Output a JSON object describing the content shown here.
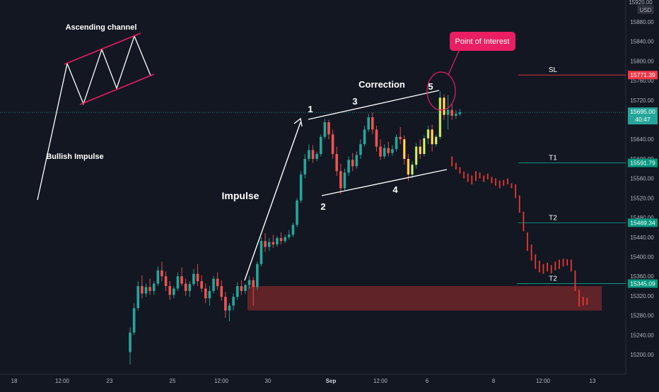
{
  "chart_data": {
    "type": "candlestick",
    "instrument_currency": "USD",
    "price_axis_top_label": "15920.00",
    "y_ticks": [
      15880,
      15840,
      15800,
      15760,
      15720,
      15680,
      15640,
      15600,
      15560,
      15520,
      15480,
      15440,
      15400,
      15360,
      15320,
      15280,
      15240,
      15200
    ],
    "ylim": [
      15170,
      15930
    ],
    "x_tick_labels": [
      "18",
      "12:00",
      "23",
      "25",
      "12:00",
      "30",
      "Sep",
      "12:00",
      "6",
      "8",
      "12:00",
      "13"
    ],
    "current_price": {
      "value": "15695.00",
      "countdown": "40:47",
      "value_num": 15695
    },
    "levels": [
      {
        "id": "sl",
        "name": "SL",
        "value": "15771.39",
        "value_num": 15771.39,
        "color": "#f23645"
      },
      {
        "id": "t1",
        "name": "T1",
        "value": "15591.79",
        "value_num": 15591.79,
        "color": "#089981"
      },
      {
        "id": "t2a",
        "name": "T2",
        "value": "15469.34",
        "value_num": 15469.34,
        "color": "#089981"
      },
      {
        "id": "t2b",
        "name": "T2",
        "value": "15345.09",
        "value_num": 15345.09,
        "color": "#089981"
      }
    ],
    "zone": {
      "low": 15290,
      "high": 15340,
      "color": "#8b2e31"
    },
    "annotations": {
      "ascending_channel": "Ascending channel",
      "bullish_impulse": "Bullish Impulse",
      "impulse": "Impulse",
      "correction": "Correction",
      "point_of_interest": "Point of Interest",
      "wave_labels": [
        "1",
        "2",
        "3",
        "4",
        "5"
      ]
    },
    "historical_candles": [
      {
        "t": 0,
        "o": 15205,
        "h": 15255,
        "c": 15245,
        "l": 15180
      },
      {
        "t": 1,
        "o": 15245,
        "h": 15305,
        "c": 15295,
        "l": 15240
      },
      {
        "t": 2,
        "o": 15295,
        "h": 15350,
        "c": 15340,
        "l": 15290
      },
      {
        "t": 3,
        "o": 15340,
        "h": 15362,
        "c": 15325,
        "l": 15315
      },
      {
        "t": 4,
        "o": 15325,
        "h": 15345,
        "c": 15338,
        "l": 15318
      },
      {
        "t": 5,
        "o": 15338,
        "h": 15355,
        "c": 15330,
        "l": 15322
      },
      {
        "t": 6,
        "o": 15330,
        "h": 15350,
        "c": 15345,
        "l": 15322
      },
      {
        "t": 7,
        "o": 15345,
        "h": 15380,
        "c": 15372,
        "l": 15340
      },
      {
        "t": 8,
        "o": 15372,
        "h": 15390,
        "c": 15360,
        "l": 15350
      },
      {
        "t": 9,
        "o": 15360,
        "h": 15370,
        "c": 15340,
        "l": 15330
      },
      {
        "t": 10,
        "o": 15340,
        "h": 15350,
        "c": 15322,
        "l": 15312
      },
      {
        "t": 11,
        "o": 15322,
        "h": 15340,
        "c": 15335,
        "l": 15315
      },
      {
        "t": 12,
        "o": 15335,
        "h": 15368,
        "c": 15360,
        "l": 15330
      },
      {
        "t": 13,
        "o": 15360,
        "h": 15378,
        "c": 15345,
        "l": 15340
      },
      {
        "t": 14,
        "o": 15345,
        "h": 15355,
        "c": 15330,
        "l": 15320
      },
      {
        "t": 15,
        "o": 15330,
        "h": 15350,
        "c": 15344,
        "l": 15318
      },
      {
        "t": 16,
        "o": 15344,
        "h": 15375,
        "c": 15365,
        "l": 15340
      },
      {
        "t": 17,
        "o": 15365,
        "h": 15385,
        "c": 15350,
        "l": 15340
      },
      {
        "t": 18,
        "o": 15350,
        "h": 15362,
        "c": 15335,
        "l": 15328
      },
      {
        "t": 19,
        "o": 15335,
        "h": 15345,
        "c": 15315,
        "l": 15305
      },
      {
        "t": 20,
        "o": 15315,
        "h": 15340,
        "c": 15330,
        "l": 15300
      },
      {
        "t": 21,
        "o": 15330,
        "h": 15360,
        "c": 15355,
        "l": 15325
      },
      {
        "t": 22,
        "o": 15355,
        "h": 15368,
        "c": 15340,
        "l": 15332
      },
      {
        "t": 23,
        "o": 15340,
        "h": 15352,
        "c": 15318,
        "l": 15310
      },
      {
        "t": 24,
        "o": 15318,
        "h": 15328,
        "c": 15290,
        "l": 15275
      },
      {
        "t": 25,
        "o": 15290,
        "h": 15305,
        "c": 15300,
        "l": 15268
      },
      {
        "t": 26,
        "o": 15300,
        "h": 15325,
        "c": 15318,
        "l": 15290
      },
      {
        "t": 27,
        "o": 15318,
        "h": 15348,
        "c": 15340,
        "l": 15312
      },
      {
        "t": 28,
        "o": 15340,
        "h": 15352,
        "c": 15330,
        "l": 15322
      },
      {
        "t": 29,
        "o": 15330,
        "h": 15345,
        "c": 15342,
        "l": 15324
      },
      {
        "t": 30,
        "o": 15342,
        "h": 15360,
        "c": 15352,
        "l": 15335
      },
      {
        "t": 31,
        "o": 15352,
        "h": 15358,
        "c": 15338,
        "l": 15300
      },
      {
        "t": 32,
        "o": 15338,
        "h": 15390,
        "c": 15385,
        "l": 15332
      },
      {
        "t": 33,
        "o": 15385,
        "h": 15440,
        "c": 15432,
        "l": 15380
      },
      {
        "t": 34,
        "o": 15432,
        "h": 15448,
        "c": 15420,
        "l": 15410
      },
      {
        "t": 35,
        "o": 15420,
        "h": 15438,
        "c": 15430,
        "l": 15412
      },
      {
        "t": 36,
        "o": 15430,
        "h": 15445,
        "c": 15425,
        "l": 15418
      },
      {
        "t": 37,
        "o": 15425,
        "h": 15442,
        "c": 15438,
        "l": 15420
      },
      {
        "t": 38,
        "o": 15438,
        "h": 15450,
        "c": 15432,
        "l": 15425
      },
      {
        "t": 39,
        "o": 15432,
        "h": 15445,
        "c": 15440,
        "l": 15428
      },
      {
        "t": 40,
        "o": 15440,
        "h": 15455,
        "c": 15445,
        "l": 15435
      },
      {
        "t": 41,
        "o": 15445,
        "h": 15470,
        "c": 15465,
        "l": 15440
      },
      {
        "t": 42,
        "o": 15465,
        "h": 15520,
        "c": 15515,
        "l": 15460
      },
      {
        "t": 43,
        "o": 15515,
        "h": 15575,
        "c": 15568,
        "l": 15510
      },
      {
        "t": 44,
        "o": 15568,
        "h": 15610,
        "c": 15600,
        "l": 15560
      },
      {
        "t": 45,
        "o": 15600,
        "h": 15630,
        "c": 15618,
        "l": 15595
      },
      {
        "t": 46,
        "o": 15618,
        "h": 15628,
        "c": 15600,
        "l": 15592
      },
      {
        "t": 47,
        "o": 15600,
        "h": 15615,
        "c": 15610,
        "l": 15595
      },
      {
        "t": 48,
        "o": 15610,
        "h": 15650,
        "c": 15645,
        "l": 15605
      },
      {
        "t": 49,
        "o": 15645,
        "h": 15682,
        "c": 15675,
        "l": 15640
      },
      {
        "t": 50,
        "o": 15675,
        "h": 15680,
        "c": 15650,
        "l": 15640
      },
      {
        "t": 51,
        "o": 15650,
        "h": 15660,
        "c": 15610,
        "l": 15600
      },
      {
        "t": 52,
        "o": 15610,
        "h": 15625,
        "c": 15575,
        "l": 15565
      },
      {
        "t": 53,
        "o": 15575,
        "h": 15590,
        "c": 15540,
        "l": 15528
      },
      {
        "t": 54,
        "o": 15540,
        "h": 15580,
        "c": 15572,
        "l": 15535
      },
      {
        "t": 55,
        "o": 15572,
        "h": 15605,
        "c": 15598,
        "l": 15565
      },
      {
        "t": 56,
        "o": 15598,
        "h": 15612,
        "c": 15585,
        "l": 15575
      },
      {
        "t": 57,
        "o": 15585,
        "h": 15615,
        "c": 15608,
        "l": 15580
      },
      {
        "t": 58,
        "o": 15608,
        "h": 15640,
        "c": 15630,
        "l": 15600
      },
      {
        "t": 59,
        "o": 15630,
        "h": 15668,
        "c": 15660,
        "l": 15625
      },
      {
        "t": 60,
        "o": 15660,
        "h": 15692,
        "c": 15685,
        "l": 15655
      },
      {
        "t": 61,
        "o": 15685,
        "h": 15695,
        "c": 15660,
        "l": 15650
      },
      {
        "t": 62,
        "o": 15660,
        "h": 15668,
        "c": 15625,
        "l": 15615
      },
      {
        "t": 63,
        "o": 15625,
        "h": 15640,
        "c": 15605,
        "l": 15598
      },
      {
        "t": 64,
        "o": 15605,
        "h": 15630,
        "c": 15622,
        "l": 15600
      },
      {
        "t": 65,
        "o": 15622,
        "h": 15635,
        "c": 15612,
        "l": 15605
      },
      {
        "t": 66,
        "o": 15612,
        "h": 15628,
        "c": 15620,
        "l": 15606
      },
      {
        "t": 67,
        "o": 15620,
        "h": 15650,
        "c": 15645,
        "l": 15615
      },
      {
        "t": 68,
        "o": 15645,
        "h": 15665,
        "c": 15640,
        "l": 15630
      },
      {
        "t": 69,
        "o": 15640,
        "h": 15648,
        "c": 15600,
        "l": 15588
      },
      {
        "t": 70,
        "o": 15600,
        "h": 15610,
        "c": 15568,
        "l": 15555
      },
      {
        "t": 71,
        "o": 15568,
        "h": 15595,
        "c": 15588,
        "l": 15560
      },
      {
        "t": 72,
        "o": 15588,
        "h": 15632,
        "c": 15625,
        "l": 15580
      },
      {
        "t": 73,
        "o": 15625,
        "h": 15640,
        "c": 15610,
        "l": 15600
      },
      {
        "t": 74,
        "o": 15610,
        "h": 15648,
        "c": 15642,
        "l": 15605
      },
      {
        "t": 75,
        "o": 15642,
        "h": 15668,
        "c": 15660,
        "l": 15630
      },
      {
        "t": 76,
        "o": 15660,
        "h": 15670,
        "c": 15630,
        "l": 15615
      },
      {
        "t": 77,
        "o": 15630,
        "h": 15650,
        "c": 15645,
        "l": 15625
      },
      {
        "t": 78,
        "o": 15645,
        "h": 15738,
        "c": 15725,
        "l": 15640
      },
      {
        "t": 79,
        "o": 15725,
        "h": 15732,
        "c": 15690,
        "l": 15680
      },
      {
        "t": 80,
        "o": 15690,
        "h": 15730,
        "c": 15700,
        "l": 15660
      },
      {
        "t": 81,
        "o": 15700,
        "h": 15712,
        "c": 15688,
        "l": 15680
      },
      {
        "t": 82,
        "o": 15688,
        "h": 15700,
        "c": 15692,
        "l": 15682
      },
      {
        "t": 83,
        "o": 15692,
        "h": 15702,
        "c": 15695,
        "l": 15688
      }
    ],
    "projection": {
      "dashes": [
        {
          "t": 81,
          "lo": 15585,
          "hi": 15605
        },
        {
          "t": 82,
          "lo": 15578,
          "hi": 15592
        },
        {
          "t": 83,
          "lo": 15570,
          "hi": 15583
        },
        {
          "t": 84,
          "lo": 15560,
          "hi": 15574
        },
        {
          "t": 85,
          "lo": 15553,
          "hi": 15570
        },
        {
          "t": 86,
          "lo": 15548,
          "hi": 15566
        },
        {
          "t": 87,
          "lo": 15555,
          "hi": 15575
        },
        {
          "t": 88,
          "lo": 15560,
          "hi": 15572
        },
        {
          "t": 89,
          "lo": 15553,
          "hi": 15566
        },
        {
          "t": 90,
          "lo": 15558,
          "hi": 15570
        },
        {
          "t": 91,
          "lo": 15550,
          "hi": 15563
        },
        {
          "t": 92,
          "lo": 15545,
          "hi": 15560
        },
        {
          "t": 93,
          "lo": 15540,
          "hi": 15556
        },
        {
          "t": 94,
          "lo": 15545,
          "hi": 15557
        },
        {
          "t": 95,
          "lo": 15548,
          "hi": 15560
        },
        {
          "t": 96,
          "lo": 15540,
          "hi": 15550
        },
        {
          "t": 97,
          "lo": 15520,
          "hi": 15548
        },
        {
          "t": 98,
          "lo": 15490,
          "hi": 15525
        },
        {
          "t": 99,
          "lo": 15452,
          "hi": 15492
        },
        {
          "t": 100,
          "lo": 15412,
          "hi": 15450
        },
        {
          "t": 101,
          "lo": 15392,
          "hi": 15425
        },
        {
          "t": 102,
          "lo": 15375,
          "hi": 15405
        },
        {
          "t": 103,
          "lo": 15368,
          "hi": 15392
        },
        {
          "t": 104,
          "lo": 15365,
          "hi": 15385
        },
        {
          "t": 105,
          "lo": 15370,
          "hi": 15388
        },
        {
          "t": 106,
          "lo": 15366,
          "hi": 15383
        },
        {
          "t": 107,
          "lo": 15372,
          "hi": 15390
        },
        {
          "t": 108,
          "lo": 15375,
          "hi": 15394
        },
        {
          "t": 109,
          "lo": 15380,
          "hi": 15396
        },
        {
          "t": 110,
          "lo": 15382,
          "hi": 15395
        },
        {
          "t": 111,
          "lo": 15370,
          "hi": 15394
        },
        {
          "t": 112,
          "lo": 15330,
          "hi": 15372
        },
        {
          "t": 113,
          "lo": 15298,
          "hi": 15332
        },
        {
          "t": 114,
          "lo": 15300,
          "hi": 15318
        },
        {
          "t": 115,
          "lo": 15302,
          "hi": 15316
        }
      ]
    }
  }
}
